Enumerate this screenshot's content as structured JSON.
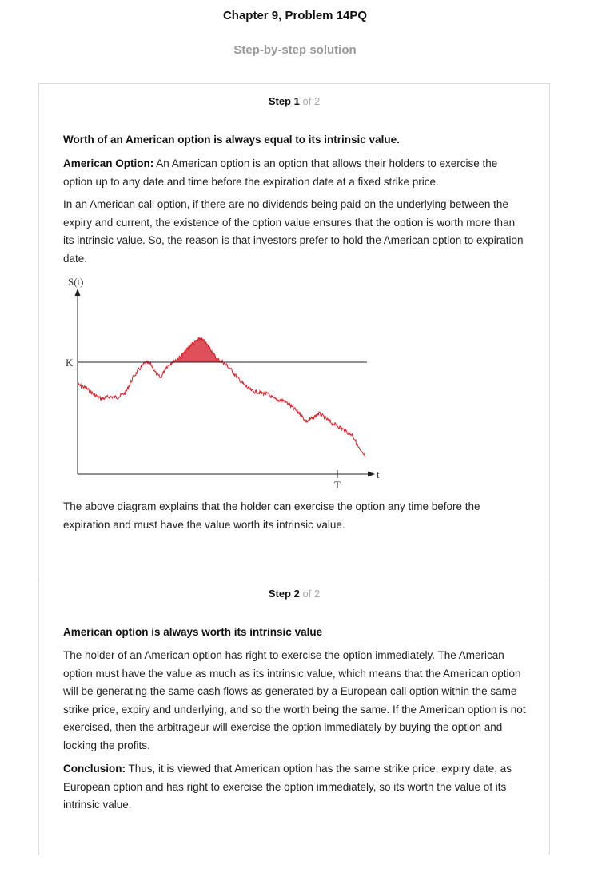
{
  "header": {
    "title": "Chapter 9, Problem 14PQ",
    "subtitle": "Step-by-step solution"
  },
  "steps": [
    {
      "number": "1",
      "of_text": "of 2",
      "heading": "Worth of an American option is always equal to its intrinsic value.",
      "def_label": "American Option:",
      "def_text": " An American option is an option that allows their holders to exercise the option up to any date and time before the expiration date at a fixed strike price.",
      "paragraph": "In an American call option, if there are no dividends being paid on the underlying between the expiry and current, the existence of the option value ensures that the option is worth more than its intrinsic value. So, the reason is that investors prefer to hold the American option to expiration date.",
      "figure": {
        "y_label": "S(t)",
        "x_label": "t",
        "strike_label": "K",
        "expiry_label": "T",
        "line_color": "#e0202a",
        "fill_color": "#e0505a"
      },
      "caption": "The above diagram explains that the holder can exercise the option any time before the expiration and must have the value worth its intrinsic value."
    },
    {
      "number": "2",
      "of_text": "of 2",
      "heading": "American option is always worth its intrinsic value",
      "paragraph": "The holder of an American option has right to exercise the option immediately. The American option must have the value as much as its intrinsic value, which means that the American option will be generating the same cash flows as generated by a European call option within the same strike price, expiry and underlying, and so the worth being the same. If the American option is not exercised, then the arbitrageur will exercise the option immediately by buying the option and locking the profits.",
      "conclusion_label": "Conclusion:",
      "conclusion_text": " Thus, it is viewed that American option has the same strike price, expiry date, as European option and has right to exercise the option immediately, so its worth the value of its intrinsic value."
    }
  ]
}
